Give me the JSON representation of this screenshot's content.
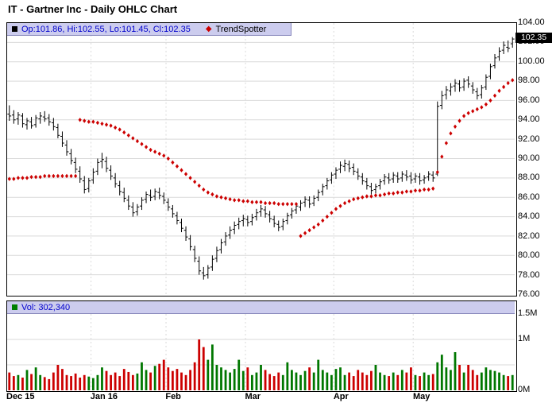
{
  "title": "IT - Gartner Inc - Daily OHLC Chart",
  "price_panel": {
    "legend": {
      "series_swatch_color": "#000000",
      "ohlc_text": "Op:101.86, Hi:102.55, Lo:101.45, Cl:102.35",
      "trend_marker_color": "#cc0000",
      "trend_label": "TrendSpotter"
    },
    "last_price_label": "102.35"
  },
  "volume_panel": {
    "legend": {
      "swatch_color": "#008000",
      "text": "Vol: 302,340"
    }
  },
  "chart_data": {
    "type": "ohlc",
    "title": "IT - Gartner Inc - Daily OHLC Chart",
    "ylim": [
      76,
      104
    ],
    "y_tick_step": 2,
    "y_tick_labels": [
      "104.00",
      "102.00",
      "100.00",
      "98.00",
      "96.00",
      "94.00",
      "92.00",
      "90.00",
      "88.00",
      "86.00",
      "84.00",
      "82.00",
      "80.00",
      "78.00",
      "76.00"
    ],
    "volume_ylim": [
      0,
      1.5
    ],
    "volume_tick_labels": [
      {
        "label": "1.5M",
        "value": 1.5
      },
      {
        "label": "1M",
        "value": 1.0
      },
      {
        "label": "0M",
        "value": 0
      }
    ],
    "x_ticks": [
      {
        "label": "Dec 15",
        "index": 0
      },
      {
        "label": "Jan 16",
        "index": 19
      },
      {
        "label": "Feb",
        "index": 36
      },
      {
        "label": "Mar",
        "index": 54
      },
      {
        "label": "Apr",
        "index": 74
      },
      {
        "label": "May",
        "index": 92
      }
    ],
    "last_close": 102.35,
    "grid": true,
    "legend_position": "top-left",
    "series": [
      {
        "name": "OHLC",
        "type": "ohlc",
        "color": "#000000",
        "ohlc": [
          [
            94.6,
            95.5,
            93.9,
            94.4
          ],
          [
            94.5,
            95.0,
            93.6,
            94.0
          ],
          [
            94.1,
            94.8,
            93.5,
            94.5
          ],
          [
            94.4,
            94.7,
            93.2,
            93.6
          ],
          [
            93.5,
            94.2,
            93.0,
            93.9
          ],
          [
            93.8,
            94.3,
            93.1,
            93.4
          ],
          [
            93.5,
            94.5,
            93.2,
            94.2
          ],
          [
            94.1,
            94.8,
            93.6,
            94.4
          ],
          [
            94.3,
            94.9,
            93.8,
            94.1
          ],
          [
            94.2,
            94.6,
            93.4,
            93.8
          ],
          [
            93.7,
            94.2,
            92.9,
            93.3
          ],
          [
            93.2,
            93.6,
            92.1,
            92.4
          ],
          [
            92.3,
            92.8,
            91.2,
            91.6
          ],
          [
            91.4,
            91.9,
            90.3,
            90.7
          ],
          [
            90.5,
            91.0,
            89.4,
            89.8
          ],
          [
            89.6,
            90.1,
            88.5,
            88.9
          ],
          [
            88.7,
            89.2,
            87.5,
            87.9
          ],
          [
            87.7,
            88.2,
            86.4,
            86.8
          ],
          [
            86.9,
            88.0,
            86.5,
            87.7
          ],
          [
            87.8,
            89.0,
            87.4,
            88.6
          ],
          [
            88.7,
            90.0,
            88.3,
            89.6
          ],
          [
            89.7,
            90.6,
            89.0,
            89.9
          ],
          [
            89.7,
            90.2,
            88.6,
            89.0
          ],
          [
            88.8,
            89.3,
            87.8,
            88.2
          ],
          [
            88.0,
            88.5,
            87.0,
            87.4
          ],
          [
            87.2,
            87.7,
            86.2,
            86.6
          ],
          [
            86.5,
            87.0,
            85.5,
            85.9
          ],
          [
            85.7,
            86.2,
            84.7,
            85.1
          ],
          [
            85.0,
            85.5,
            84.0,
            84.4
          ],
          [
            84.5,
            85.3,
            84.1,
            85.0
          ],
          [
            85.1,
            86.0,
            84.7,
            85.7
          ],
          [
            85.8,
            86.6,
            85.4,
            86.3
          ],
          [
            86.2,
            86.8,
            85.6,
            86.0
          ],
          [
            86.1,
            86.9,
            85.7,
            86.6
          ],
          [
            86.5,
            87.0,
            85.8,
            86.2
          ],
          [
            86.1,
            86.5,
            85.3,
            85.7
          ],
          [
            85.5,
            85.9,
            84.6,
            85.0
          ],
          [
            84.8,
            85.2,
            83.9,
            84.3
          ],
          [
            84.1,
            84.5,
            83.2,
            83.6
          ],
          [
            83.4,
            83.8,
            82.4,
            82.8
          ],
          [
            82.6,
            83.0,
            81.5,
            81.9
          ],
          [
            81.7,
            82.1,
            80.5,
            80.9
          ],
          [
            80.6,
            81.0,
            79.3,
            79.7
          ],
          [
            79.4,
            79.9,
            78.0,
            78.4
          ],
          [
            78.2,
            78.8,
            77.5,
            77.9
          ],
          [
            78.0,
            79.0,
            77.6,
            78.7
          ],
          [
            78.8,
            80.0,
            78.4,
            79.6
          ],
          [
            79.7,
            80.9,
            79.3,
            80.5
          ],
          [
            80.6,
            81.7,
            80.2,
            81.3
          ],
          [
            81.4,
            82.4,
            81.0,
            82.0
          ],
          [
            82.1,
            83.0,
            81.7,
            82.6
          ],
          [
            82.7,
            83.5,
            82.2,
            83.1
          ],
          [
            83.2,
            83.9,
            82.7,
            83.5
          ],
          [
            83.6,
            84.2,
            83.0,
            83.8
          ],
          [
            83.7,
            84.1,
            83.0,
            83.4
          ],
          [
            83.5,
            84.3,
            83.1,
            83.9
          ],
          [
            84.0,
            84.8,
            83.6,
            84.4
          ],
          [
            84.5,
            85.2,
            84.0,
            84.8
          ],
          [
            84.7,
            85.1,
            83.9,
            84.3
          ],
          [
            84.2,
            84.6,
            83.4,
            83.8
          ],
          [
            83.7,
            84.1,
            82.9,
            83.3
          ],
          [
            83.2,
            83.6,
            82.5,
            82.9
          ],
          [
            83.0,
            83.8,
            82.6,
            83.5
          ],
          [
            83.6,
            84.4,
            83.2,
            84.1
          ],
          [
            84.2,
            84.9,
            83.8,
            84.6
          ],
          [
            84.7,
            85.4,
            84.3,
            85.1
          ],
          [
            85.0,
            85.7,
            84.6,
            85.4
          ],
          [
            85.5,
            86.1,
            85.0,
            85.8
          ],
          [
            85.7,
            86.1,
            84.9,
            85.3
          ],
          [
            85.4,
            86.2,
            85.1,
            85.9
          ],
          [
            86.0,
            86.8,
            85.6,
            86.5
          ],
          [
            86.6,
            87.4,
            86.2,
            87.1
          ],
          [
            87.2,
            88.0,
            86.8,
            87.7
          ],
          [
            87.8,
            88.6,
            87.4,
            88.3
          ],
          [
            88.4,
            89.1,
            87.9,
            88.8
          ],
          [
            88.9,
            89.7,
            88.5,
            89.3
          ],
          [
            89.2,
            89.9,
            88.7,
            89.5
          ],
          [
            89.4,
            89.8,
            88.6,
            89.0
          ],
          [
            89.1,
            89.5,
            88.3,
            88.7
          ],
          [
            88.6,
            89.0,
            87.8,
            88.2
          ],
          [
            88.1,
            88.5,
            87.3,
            87.7
          ],
          [
            87.6,
            88.0,
            86.8,
            87.2
          ],
          [
            87.1,
            87.5,
            86.3,
            86.7
          ],
          [
            86.8,
            87.4,
            86.4,
            87.1
          ],
          [
            87.2,
            87.9,
            86.8,
            87.6
          ],
          [
            87.7,
            88.4,
            87.3,
            88.1
          ],
          [
            88.0,
            88.5,
            87.4,
            87.8
          ],
          [
            87.9,
            88.6,
            87.5,
            88.3
          ],
          [
            88.2,
            88.6,
            87.5,
            87.9
          ],
          [
            88.0,
            88.7,
            87.6,
            88.4
          ],
          [
            88.3,
            88.8,
            87.7,
            88.1
          ],
          [
            88.2,
            88.6,
            87.4,
            87.8
          ],
          [
            87.9,
            88.5,
            87.5,
            88.2
          ],
          [
            88.1,
            88.5,
            87.3,
            87.7
          ],
          [
            87.8,
            88.3,
            87.4,
            88.0
          ],
          [
            88.1,
            88.7,
            87.7,
            88.4
          ],
          [
            88.3,
            88.7,
            87.6,
            88.0
          ],
          [
            88.4,
            95.9,
            88.2,
            95.4
          ],
          [
            95.5,
            97.0,
            95.1,
            96.5
          ],
          [
            96.6,
            97.5,
            96.1,
            97.1
          ],
          [
            97.0,
            97.8,
            96.5,
            97.4
          ],
          [
            97.5,
            98.2,
            96.9,
            97.8
          ],
          [
            97.7,
            98.1,
            96.9,
            97.3
          ],
          [
            97.4,
            98.3,
            97.0,
            98.0
          ],
          [
            98.1,
            98.5,
            97.3,
            97.7
          ],
          [
            97.5,
            97.9,
            96.7,
            97.1
          ],
          [
            96.9,
            97.3,
            96.1,
            96.5
          ],
          [
            96.6,
            97.6,
            96.2,
            97.3
          ],
          [
            97.4,
            98.7,
            97.1,
            98.4
          ],
          [
            98.5,
            99.8,
            98.2,
            99.5
          ],
          [
            99.6,
            100.8,
            99.3,
            100.4
          ],
          [
            100.5,
            101.5,
            100.1,
            101.1
          ],
          [
            101.2,
            102.1,
            100.8,
            101.7
          ],
          [
            101.5,
            102.2,
            101.0,
            101.4
          ],
          [
            101.86,
            102.55,
            101.45,
            102.35
          ]
        ]
      },
      {
        "name": "TrendSpotter",
        "type": "scatter",
        "marker": "diamond",
        "color": "#cc0000",
        "values": [
          87.9,
          87.9,
          88.0,
          88.0,
          88.0,
          88.1,
          88.1,
          88.1,
          88.2,
          88.2,
          88.2,
          88.2,
          88.2,
          88.2,
          88.2,
          88.2,
          94.0,
          93.9,
          93.8,
          93.8,
          93.7,
          93.6,
          93.5,
          93.4,
          93.2,
          93.0,
          92.7,
          92.4,
          92.1,
          91.8,
          91.5,
          91.2,
          90.9,
          90.7,
          90.5,
          90.3,
          90.0,
          89.6,
          89.2,
          88.8,
          88.4,
          88.0,
          87.6,
          87.2,
          86.8,
          86.5,
          86.3,
          86.1,
          86.0,
          85.9,
          85.8,
          85.7,
          85.7,
          85.6,
          85.6,
          85.5,
          85.5,
          85.5,
          85.4,
          85.4,
          85.4,
          85.3,
          85.3,
          85.3,
          85.3,
          85.3,
          82.0,
          82.3,
          82.6,
          82.9,
          83.2,
          83.6,
          84.0,
          84.4,
          84.8,
          85.1,
          85.4,
          85.6,
          85.8,
          85.9,
          86.0,
          86.1,
          86.1,
          86.2,
          86.2,
          86.3,
          86.4,
          86.4,
          86.5,
          86.5,
          86.6,
          86.6,
          86.7,
          86.7,
          86.8,
          86.8,
          86.9,
          88.6,
          90.2,
          91.6,
          92.6,
          93.3,
          93.9,
          94.4,
          94.7,
          94.9,
          95.1,
          95.3,
          95.6,
          96.0,
          96.5,
          97.0,
          97.4,
          97.8,
          98.1
        ]
      },
      {
        "name": "Volume",
        "type": "bar",
        "up_color": "#007700",
        "down_color": "#cc0000",
        "values": [
          0.35,
          0.28,
          0.3,
          0.25,
          0.4,
          0.32,
          0.45,
          0.3,
          0.26,
          0.22,
          0.35,
          0.5,
          0.42,
          0.3,
          0.28,
          0.33,
          0.25,
          0.3,
          0.27,
          0.24,
          0.3,
          0.45,
          0.38,
          0.3,
          0.35,
          0.28,
          0.42,
          0.36,
          0.3,
          0.33,
          0.55,
          0.4,
          0.35,
          0.48,
          0.52,
          0.6,
          0.45,
          0.38,
          0.42,
          0.35,
          0.3,
          0.4,
          0.55,
          1.0,
          0.85,
          0.6,
          0.9,
          0.5,
          0.45,
          0.4,
          0.35,
          0.42,
          0.6,
          0.38,
          0.45,
          0.3,
          0.35,
          0.5,
          0.4,
          0.32,
          0.28,
          0.35,
          0.3,
          0.55,
          0.4,
          0.35,
          0.3,
          0.38,
          0.45,
          0.35,
          0.6,
          0.4,
          0.35,
          0.3,
          0.42,
          0.45,
          0.3,
          0.35,
          0.28,
          0.4,
          0.35,
          0.3,
          0.38,
          0.5,
          0.35,
          0.3,
          0.28,
          0.35,
          0.3,
          0.4,
          0.35,
          0.45,
          0.3,
          0.28,
          0.35,
          0.3,
          0.32,
          0.55,
          0.7,
          0.45,
          0.4,
          0.75,
          0.5,
          0.35,
          0.5,
          0.4,
          0.3,
          0.35,
          0.45,
          0.4,
          0.38,
          0.35,
          0.3,
          0.28,
          0.3
        ]
      }
    ]
  }
}
